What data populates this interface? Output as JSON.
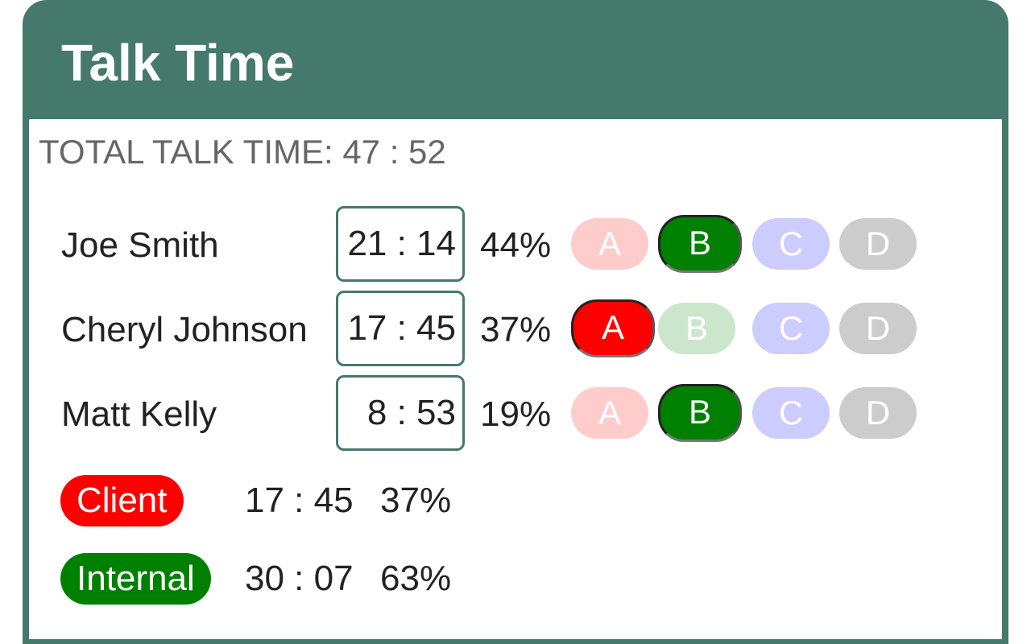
{
  "header": {
    "title": "Talk Time"
  },
  "summary": {
    "total_label": "TOTAL TALK TIME: 47 : 52"
  },
  "members": [
    {
      "name": "Joe Smith",
      "time": "21 : 14",
      "percent": "44%",
      "selected_group": "B"
    },
    {
      "name": "Cheryl Johnson",
      "time": "17 : 45",
      "percent": "37%",
      "selected_group": "A"
    },
    {
      "name": "Matt Kelly",
      "time": "8 : 53",
      "percent": "19%",
      "selected_group": "B"
    }
  ],
  "groups": {
    "a": "A",
    "b": "B",
    "c": "C",
    "d": "D"
  },
  "legend": [
    {
      "label": "Client",
      "time": "17 : 45",
      "percent": "37%"
    },
    {
      "label": "Internal",
      "time": "30 : 07",
      "percent": "63%"
    }
  ],
  "colors": {
    "header": "#45796b",
    "group_a_active": "#ff0000",
    "group_a_inactive": "#ffcccc",
    "group_b_active": "#008000",
    "group_b_inactive": "#cce6cc",
    "group_c_inactive": "#ccccff",
    "group_d_inactive": "#cccccc",
    "client": "#ff0000",
    "internal": "#008000"
  }
}
